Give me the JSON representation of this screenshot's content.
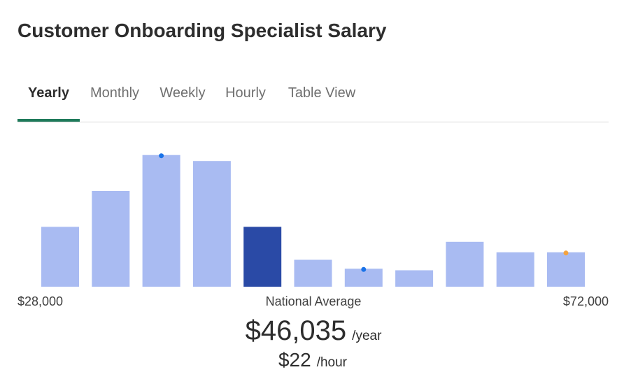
{
  "page": {
    "title": "Customer Onboarding Specialist Salary"
  },
  "tabs": [
    {
      "label": "Yearly",
      "active": true
    },
    {
      "label": "Monthly",
      "active": false
    },
    {
      "label": "Weekly",
      "active": false
    },
    {
      "label": "Hourly",
      "active": false
    },
    {
      "label": "Table View",
      "active": false
    }
  ],
  "colors": {
    "bar": "#a9bbf2",
    "bar_highlight": "#2a4aa6",
    "tab_active_underline": "#1e7a5a",
    "marker_blue": "#1a73e8",
    "marker_orange": "#f4a340"
  },
  "chart_data": {
    "type": "bar",
    "range": {
      "min_label": "$28,000",
      "max_label": "$72,000"
    },
    "values": [
      40,
      64,
      88,
      84,
      40,
      18,
      12,
      11,
      30,
      23,
      23
    ],
    "ylim": [
      0,
      100
    ],
    "highlight_index": 4,
    "markers": [
      {
        "bar_index": 2,
        "color": "blue"
      },
      {
        "bar_index": 6,
        "color": "blue"
      },
      {
        "bar_index": 10,
        "color": "orange"
      }
    ]
  },
  "national_average": {
    "label": "National Average",
    "yearly_amount": "$46,035",
    "yearly_unit": "/year",
    "hourly_amount": "$22",
    "hourly_unit": "/hour"
  }
}
